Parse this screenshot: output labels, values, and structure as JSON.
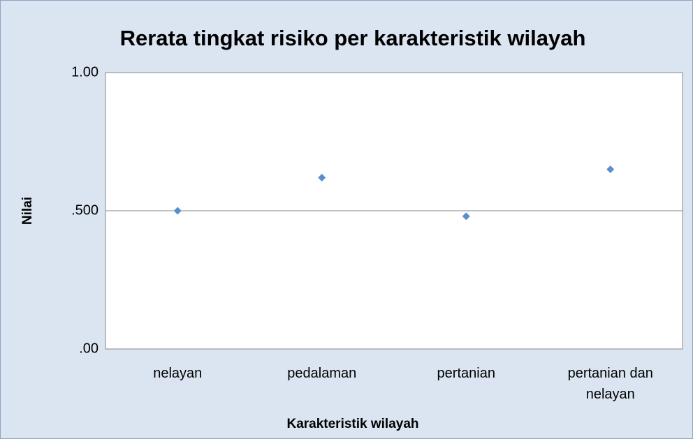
{
  "chart_data": {
    "type": "scatter",
    "title": "Rerata tingkat risiko  per karakteristik wilayah",
    "x_label": "Karakteristik wilayah",
    "y_label": "Nilai",
    "categories": [
      "nelayan",
      "pedalaman",
      "pertanian",
      "pertanian dan nelayan"
    ],
    "values": [
      0.5,
      0.62,
      0.48,
      0.65
    ],
    "color": "#5b8fcc",
    "ylim": [
      0,
      1
    ],
    "yticks": [
      {
        "value": 0,
        "label": ".00"
      },
      {
        "value": 0.5,
        "label": ".500"
      },
      {
        "value": 1,
        "label": "1.00"
      }
    ],
    "grid": true
  }
}
